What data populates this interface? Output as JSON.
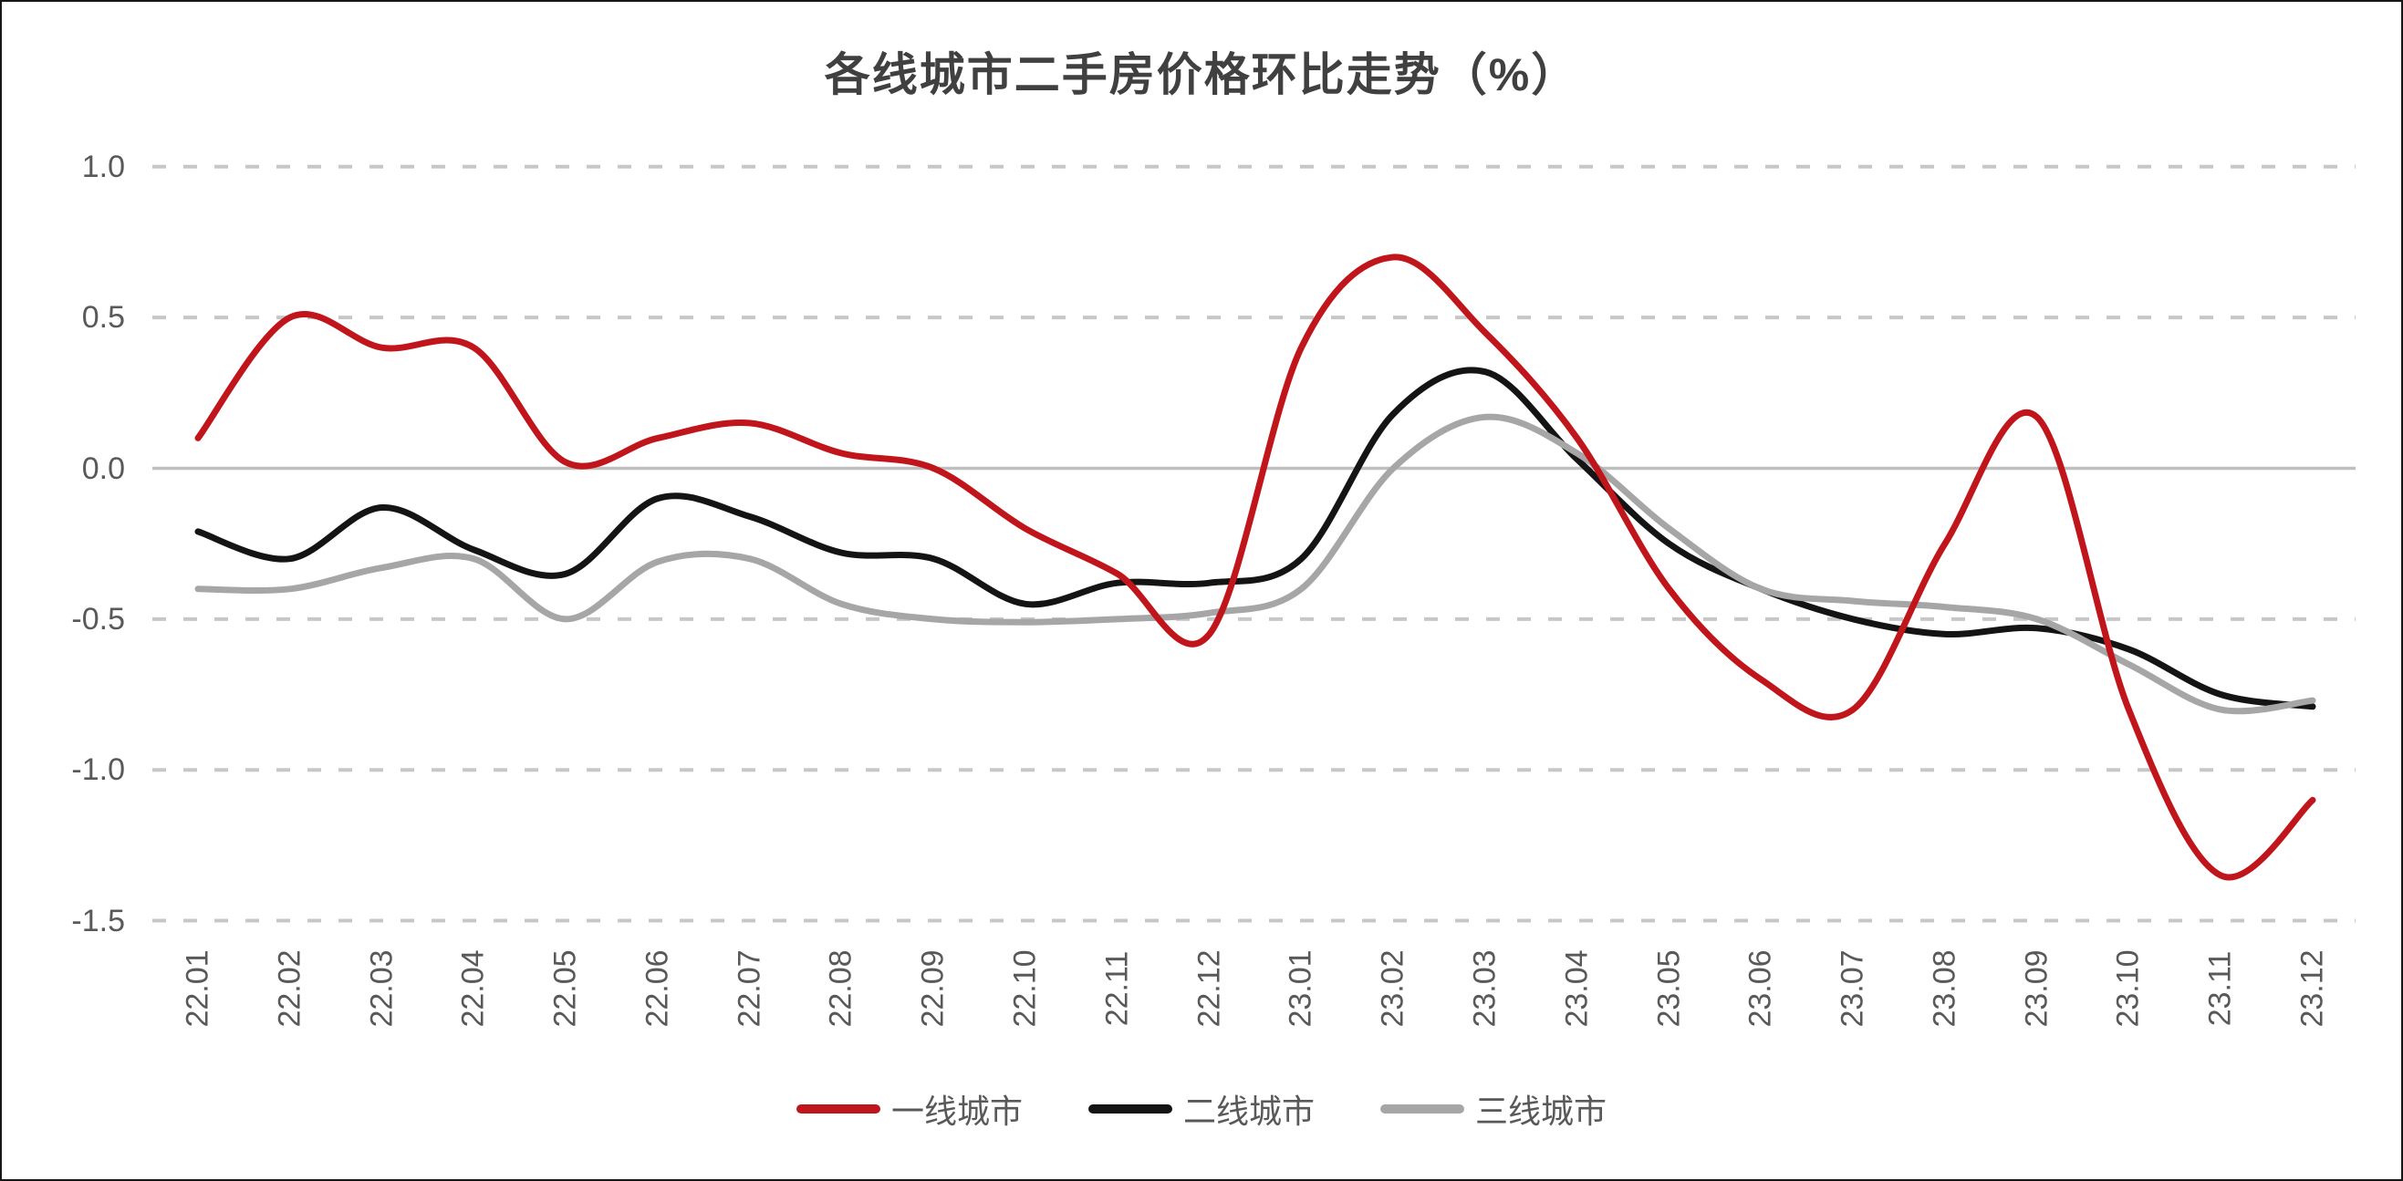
{
  "title": "各线城市二手房价格环比走势（%）",
  "y_axis": {
    "ticks": [
      {
        "value": 1.0,
        "label": "1.0"
      },
      {
        "value": 0.5,
        "label": "0.5"
      },
      {
        "value": 0.0,
        "label": "0.0"
      },
      {
        "value": -0.5,
        "label": "-0.5"
      },
      {
        "value": -1.0,
        "label": "-1.0"
      },
      {
        "value": -1.5,
        "label": "-1.5"
      }
    ]
  },
  "x_axis": {
    "labels": [
      "22.01",
      "22.02",
      "22.03",
      "22.04",
      "22.05",
      "22.06",
      "22.07",
      "22.08",
      "22.09",
      "22.10",
      "22.11",
      "22.12",
      "23.01",
      "23.02",
      "23.03",
      "23.04",
      "23.05",
      "23.06",
      "23.07",
      "23.08",
      "23.09",
      "23.10",
      "23.11",
      "23.12"
    ]
  },
  "legend": {
    "items": [
      {
        "label": "一线城市",
        "color": "#C1151C"
      },
      {
        "label": "二线城市",
        "color": "#141414"
      },
      {
        "label": "三线城市",
        "color": "#A6A6A6"
      }
    ]
  },
  "colors": {
    "grid_dashed": "#C7C7C7",
    "grid_zero": "#BFBFBF",
    "text": "#595959",
    "title_text": "#404040"
  },
  "chart_data": {
    "type": "line",
    "title": "各线城市二手房价格环比走势（%）",
    "categories": [
      "22.01",
      "22.02",
      "22.03",
      "22.04",
      "22.05",
      "22.06",
      "22.07",
      "22.08",
      "22.09",
      "22.10",
      "22.11",
      "22.12",
      "23.01",
      "23.02",
      "23.03",
      "23.04",
      "23.05",
      "23.06",
      "23.07",
      "23.08",
      "23.09",
      "23.10",
      "23.11",
      "23.12"
    ],
    "series": [
      {
        "name": "一线城市",
        "color": "#C1151C",
        "values": [
          0.1,
          0.5,
          0.4,
          0.4,
          0.02,
          0.1,
          0.15,
          0.05,
          0.0,
          -0.2,
          -0.35,
          -0.55,
          0.4,
          0.7,
          0.45,
          0.1,
          -0.4,
          -0.7,
          -0.8,
          -0.25,
          0.17,
          -0.8,
          -1.35,
          -1.1
        ]
      },
      {
        "name": "二线城市",
        "color": "#141414",
        "values": [
          -0.21,
          -0.3,
          -0.13,
          -0.27,
          -0.35,
          -0.1,
          -0.16,
          -0.28,
          -0.3,
          -0.45,
          -0.38,
          -0.38,
          -0.3,
          0.18,
          0.32,
          0.03,
          -0.25,
          -0.4,
          -0.5,
          -0.55,
          -0.53,
          -0.6,
          -0.75,
          -0.79
        ]
      },
      {
        "name": "三线城市",
        "color": "#A6A6A6",
        "values": [
          -0.4,
          -0.4,
          -0.33,
          -0.3,
          -0.5,
          -0.31,
          -0.3,
          -0.45,
          -0.5,
          -0.51,
          -0.5,
          -0.48,
          -0.4,
          0.0,
          0.17,
          0.05,
          -0.2,
          -0.4,
          -0.44,
          -0.46,
          -0.5,
          -0.65,
          -0.8,
          -0.77
        ]
      }
    ],
    "ylim": [
      -1.5,
      1.0
    ],
    "yticks": [
      1.0,
      0.5,
      0.0,
      -0.5,
      -1.0,
      -1.5
    ],
    "xlabel": "",
    "ylabel": "",
    "grid": "horizontal dashed gridlines, solid zero line",
    "legend_position": "bottom",
    "smooth": true
  }
}
